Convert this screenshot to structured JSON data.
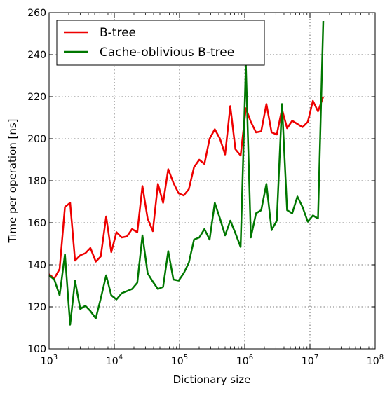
{
  "chart_data": {
    "type": "line",
    "xscale": "log",
    "xlabel": "Dictionary size",
    "ylabel": "Time per operation [ns]",
    "xlim": [
      1000,
      100000000
    ],
    "ylim": [
      100,
      260
    ],
    "grid": true,
    "legend_position": "top-left",
    "x_ticks": [
      {
        "value": 1000,
        "base": "10",
        "exp": "3"
      },
      {
        "value": 10000,
        "base": "10",
        "exp": "4"
      },
      {
        "value": 100000,
        "base": "10",
        "exp": "5"
      },
      {
        "value": 1000000,
        "base": "10",
        "exp": "6"
      },
      {
        "value": 10000000,
        "base": "10",
        "exp": "7"
      },
      {
        "value": 100000000,
        "base": "10",
        "exp": "8"
      }
    ],
    "y_ticks": [
      "100",
      "120",
      "140",
      "160",
      "180",
      "200",
      "220",
      "240",
      "260"
    ],
    "series": [
      {
        "name": "B-tree",
        "color": "#ee0000",
        "x": [
          1000,
          1200,
          1450,
          1750,
          2100,
          2500,
          3000,
          3600,
          4300,
          5200,
          6200,
          7500,
          9000,
          10800,
          13000,
          15600,
          18700,
          22500,
          27000,
          32400,
          38900,
          46700,
          56000,
          67200,
          80700,
          96800,
          116000,
          139000,
          167000,
          201000,
          241000,
          289000,
          347000,
          417000,
          500000,
          600000,
          720000,
          864000,
          1040000,
          1240000,
          1490000,
          1790000,
          2150000,
          2580000,
          3100000,
          3720000,
          4460000,
          5350000,
          6420000,
          7700000,
          9250000,
          11100000,
          13300000,
          16000000
        ],
        "values": [
          135.5,
          133.5,
          138,
          167.5,
          169.5,
          142,
          144.5,
          145.5,
          148,
          141.5,
          144,
          163,
          146,
          155.5,
          153,
          153.5,
          157,
          155.5,
          177.5,
          162,
          156,
          178.5,
          169.5,
          185.5,
          179,
          174,
          173,
          176,
          186.5,
          190,
          188,
          200,
          204.5,
          200,
          192.5,
          215.5,
          195,
          192,
          214.5,
          208,
          203,
          203.5,
          216.5,
          203,
          202,
          214,
          205,
          208.5,
          207,
          205.5,
          208,
          218,
          213,
          220
        ]
      },
      {
        "name": "Cache-oblivious B-tree",
        "color": "#007700",
        "x": [
          1000,
          1200,
          1450,
          1750,
          2100,
          2500,
          3000,
          3600,
          4300,
          5200,
          6200,
          7500,
          9000,
          10800,
          13000,
          15600,
          18700,
          22500,
          27000,
          32400,
          38900,
          46700,
          56000,
          67200,
          80700,
          96800,
          116000,
          139000,
          167000,
          201000,
          241000,
          289000,
          347000,
          417000,
          500000,
          600000,
          720000,
          864000,
          1040000,
          1240000,
          1490000,
          1790000,
          2150000,
          2580000,
          3100000,
          3720000,
          4460000,
          5350000,
          6420000,
          7700000,
          9250000,
          11100000,
          13300000,
          16000000
        ],
        "values": [
          135,
          133,
          125.5,
          145,
          111.5,
          132.5,
          119,
          120.5,
          118,
          114.5,
          124,
          135,
          125.5,
          123.5,
          126.5,
          127.5,
          128.5,
          131.5,
          154,
          136,
          132,
          128.5,
          129.5,
          146.5,
          133,
          132.5,
          136,
          141,
          152,
          153,
          157,
          152,
          169.5,
          162,
          154,
          161,
          155,
          148.5,
          235,
          153,
          164.5,
          166,
          178.5,
          156.5,
          161,
          216.5,
          166,
          164.5,
          172.5,
          167.5,
          160.5,
          163.5,
          162,
          256
        ]
      }
    ]
  }
}
